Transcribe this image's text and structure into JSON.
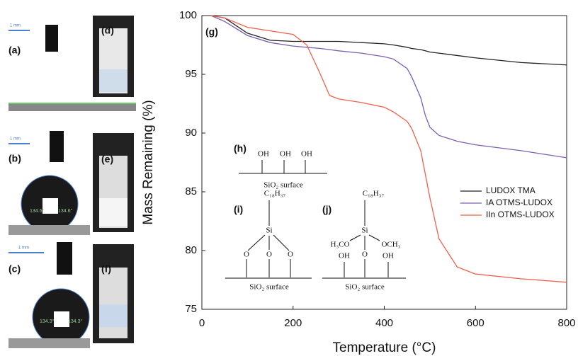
{
  "chart_data": {
    "type": "line",
    "panel_label": "(g)",
    "x_label": "Temperature (°C)",
    "y_label": "Mass Remaining (%)",
    "x": [
      20,
      50,
      100,
      150,
      200,
      230,
      260,
      280,
      300,
      350,
      400,
      420,
      450,
      460,
      480,
      490,
      500,
      520,
      560,
      600,
      700,
      800
    ],
    "series": [
      {
        "name": "LUDOX TMA",
        "color": "#222222",
        "values": [
          100,
          99.8,
          98.5,
          97.9,
          97.8,
          97.8,
          97.8,
          97.8,
          97.8,
          97.7,
          97.6,
          97.5,
          97.3,
          97.2,
          97.1,
          97.0,
          96.9,
          96.8,
          96.6,
          96.4,
          96.0,
          95.8
        ]
      },
      {
        "name": "IA OTMS-LUDOX",
        "color": "#7b5fb0",
        "values": [
          100,
          99.5,
          98.3,
          97.7,
          97.4,
          97.3,
          97.2,
          97.1,
          97.0,
          96.8,
          96.5,
          96.3,
          95.5,
          94.8,
          93.0,
          91.5,
          90.5,
          89.8,
          89.3,
          89.0,
          88.5,
          87.9
        ]
      },
      {
        "name": "IIn OTMS-LUDOX",
        "color": "#f0604a",
        "values": [
          100,
          99.8,
          99.0,
          98.7,
          98.4,
          97.5,
          95.0,
          93.2,
          92.9,
          92.6,
          92.2,
          91.8,
          91.0,
          90.4,
          88.5,
          86.5,
          84.5,
          81.0,
          78.6,
          78.0,
          77.6,
          77.3
        ]
      }
    ],
    "xlim": [
      0,
      800
    ],
    "xticks": [
      0,
      200,
      400,
      600,
      800
    ],
    "ylim": [
      75,
      100
    ],
    "yticks": [
      75,
      80,
      85,
      90,
      95,
      100
    ],
    "legend": "right"
  },
  "photos": {
    "labels": [
      "(a)",
      "(b)",
      "(c)",
      "(d)",
      "(e)",
      "(f)"
    ],
    "scale": "1 mm",
    "angles_b": [
      "134.6°",
      "134.6°"
    ],
    "angles_c": [
      "134.3°",
      "134.3°"
    ]
  },
  "insets": {
    "h": {
      "label": "(h)",
      "groups": [
        "OH",
        "OH",
        "OH"
      ],
      "surface": "SiO₂ surface"
    },
    "i": {
      "label": "(i)",
      "chain": "C₁₈H₃₇",
      "center": "Si",
      "oxygens": [
        "O",
        "O",
        "O"
      ],
      "surface": "SiO₂ surface"
    },
    "j": {
      "label": "(j)",
      "chain": "C₁₈H₃₇",
      "center": "Si",
      "left": "H₃CO",
      "right": "OCH₃",
      "oxygen": "O",
      "groups": [
        "OH",
        "OH"
      ],
      "surface": "SiO₂ surface"
    }
  }
}
